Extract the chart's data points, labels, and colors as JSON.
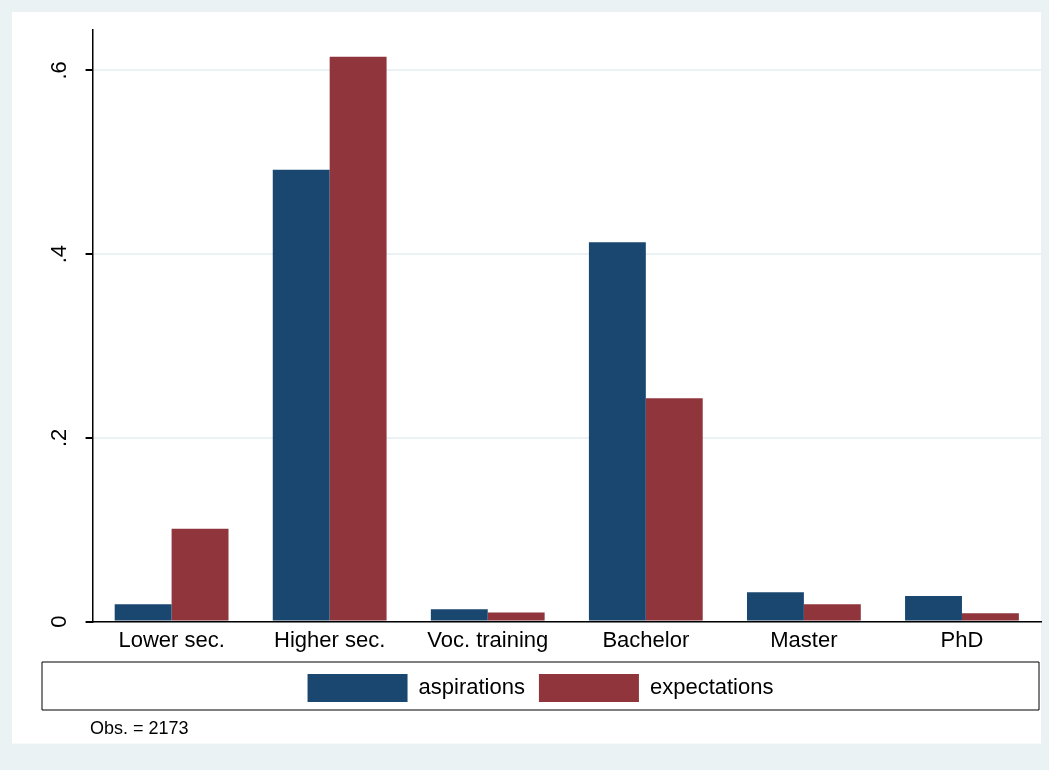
{
  "chart_data": {
    "type": "bar",
    "categories": [
      "Lower sec.",
      "Higher sec.",
      "Voc. training",
      "Bachelor",
      "Master",
      "PhD"
    ],
    "series": [
      {
        "name": "aspirations",
        "color": "#1a476f",
        "values": [
          0.019,
          0.492,
          0.0135,
          0.413,
          0.032,
          0.028
        ]
      },
      {
        "name": "expectations",
        "color": "#90353b",
        "values": [
          0.101,
          0.615,
          0.01,
          0.243,
          0.019,
          0.009
        ]
      }
    ],
    "ylim": [
      0,
      0.644
    ],
    "yticks": [
      {
        "value": 0,
        "label": "0"
      },
      {
        "value": 0.2,
        "label": ".2"
      },
      {
        "value": 0.4,
        "label": ".4"
      },
      {
        "value": 0.6,
        "label": ".6"
      }
    ],
    "grid": "y",
    "legend": "bottom",
    "annotations": [
      "Obs. = 2173"
    ]
  }
}
